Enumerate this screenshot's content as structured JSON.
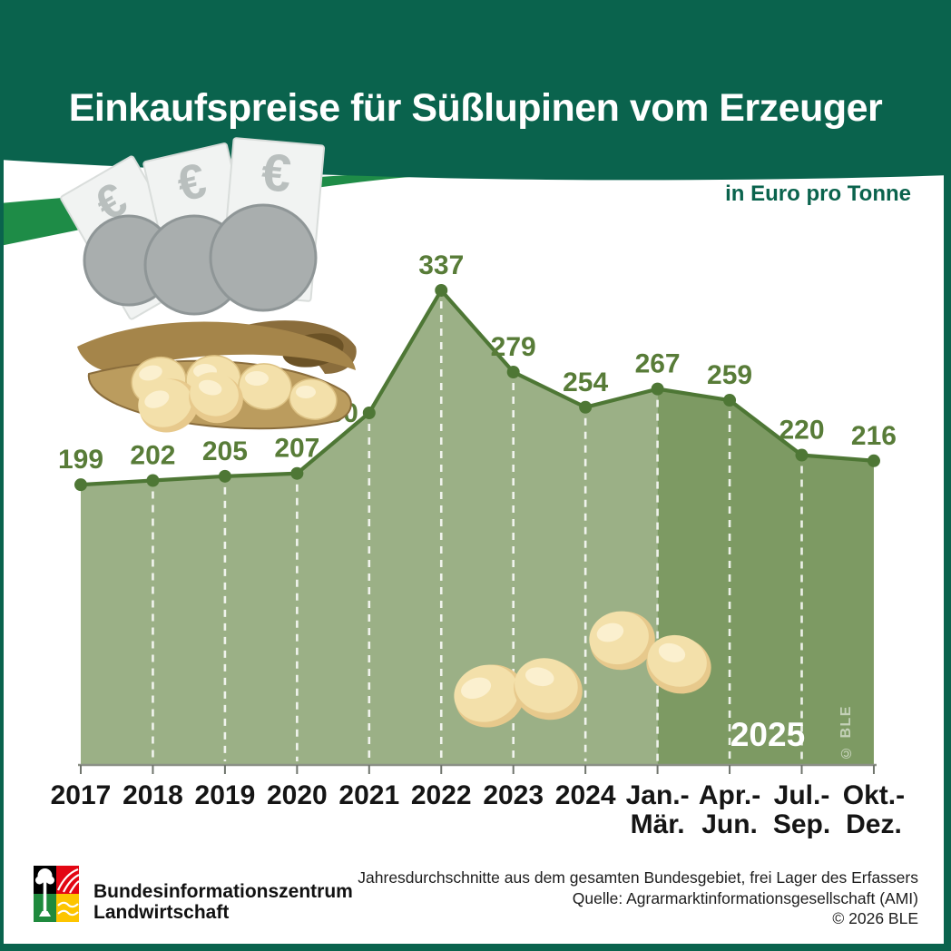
{
  "header": {
    "title": "Einkaufspreise für Süßlupinen vom Erzeuger",
    "unit_label": "in Euro pro Tonne"
  },
  "chart_data": {
    "type": "area",
    "title": "Einkaufspreise für Süßlupinen vom Erzeuger",
    "ylabel": "Euro pro Tonne",
    "categories": [
      "2017",
      "2018",
      "2019",
      "2020",
      "2021",
      "2022",
      "2023",
      "2024",
      "Jan.-Mär.",
      "Apr.-Jun.",
      "Jul.-Sep.",
      "Okt.-Dez."
    ],
    "values": [
      199,
      202,
      205,
      207,
      250,
      337,
      279,
      254,
      267,
      259,
      220,
      216
    ],
    "period_annotation": "2025",
    "quarter_start_index": 8,
    "ylim": [
      0,
      360
    ],
    "grid": false,
    "legend": false,
    "area_color_light": "#9bb086",
    "area_color_dark": "#7d9a63",
    "line_color": "#4e7735",
    "label_color": "#587c38"
  },
  "watermark": "© BLE",
  "footer": {
    "org_name_line1": "Bundesinformationszentrum",
    "org_name_line2": "Landwirtschaft",
    "note": "Jahresdurchschnitte aus dem gesamten Bundesgebiet, frei Lager des Erfassers",
    "source": "Quelle: Agrarmarktinformationsgesellschaft (AMI)",
    "copyright": "© 2026 BLE"
  },
  "colors": {
    "header_green": "#0a634d",
    "accent_green": "#1e8c47",
    "axis_gray": "#8b9086",
    "logo_red": "#e30613",
    "logo_yellow": "#fdc500",
    "logo_green": "#1f8a3d"
  }
}
